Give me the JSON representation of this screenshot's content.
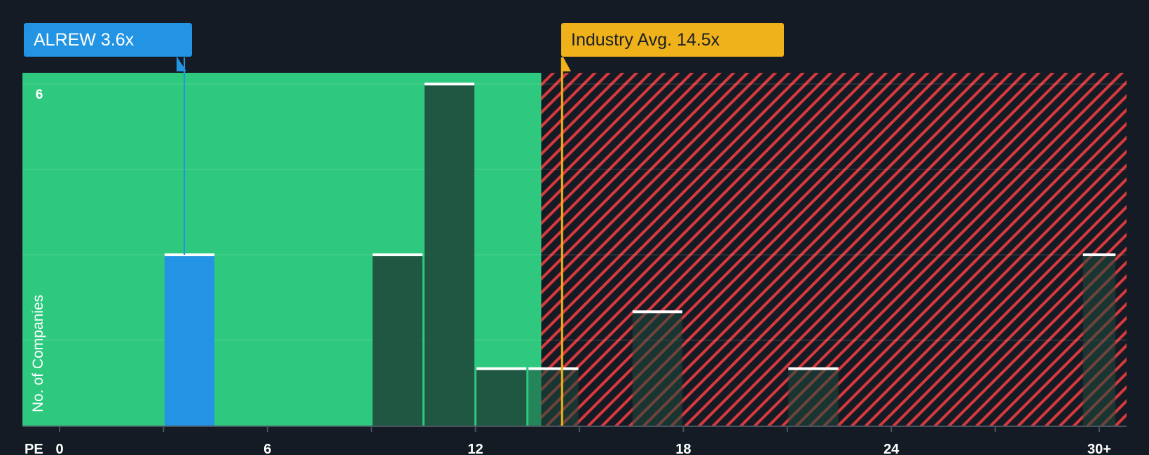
{
  "company": {
    "label": "ALREW 3.6x",
    "value": 3.6,
    "color": "#2394e3"
  },
  "industry": {
    "label": "Industry Avg. 14.5x",
    "value": 14.5,
    "color": "#efb21a"
  },
  "colors": {
    "background": "#151b24",
    "fair_zone": "#2ec97e",
    "expensive_zone": "#d8393d",
    "bar": "#1e4a3d",
    "bar_highlight": "#2394e3",
    "bar_top": "#ffffff"
  },
  "chart_data": {
    "type": "bar",
    "xlabel": "PE",
    "ylabel": "No. of Companies",
    "xlim": [
      -1,
      30.5
    ],
    "ylim": [
      0,
      6.2
    ],
    "x_ticks": [
      {
        "value": 0,
        "label": "0"
      },
      {
        "value": 6,
        "label": "6"
      },
      {
        "value": 12,
        "label": "12"
      },
      {
        "value": 18,
        "label": "18"
      },
      {
        "value": 24,
        "label": "24"
      },
      {
        "value": 30,
        "label": "30+"
      }
    ],
    "y_ticks": [
      {
        "value": 6,
        "label": "6"
      }
    ],
    "grid": true,
    "fair_zone_max": 13.9,
    "bars": [
      {
        "x0": 3.0,
        "x1": 4.5,
        "count": 3,
        "highlight": true
      },
      {
        "x0": 9.0,
        "x1": 10.5,
        "count": 3
      },
      {
        "x0": 10.5,
        "x1": 12.0,
        "count": 6
      },
      {
        "x0": 12.0,
        "x1": 13.5,
        "count": 1
      },
      {
        "x0": 13.5,
        "x1": 15.0,
        "count": 1
      },
      {
        "x0": 16.5,
        "x1": 18.0,
        "count": 2
      },
      {
        "x0": 21.0,
        "x1": 22.5,
        "count": 1
      },
      {
        "x0": 29.5,
        "x1": 30.5,
        "count": 3
      }
    ]
  }
}
